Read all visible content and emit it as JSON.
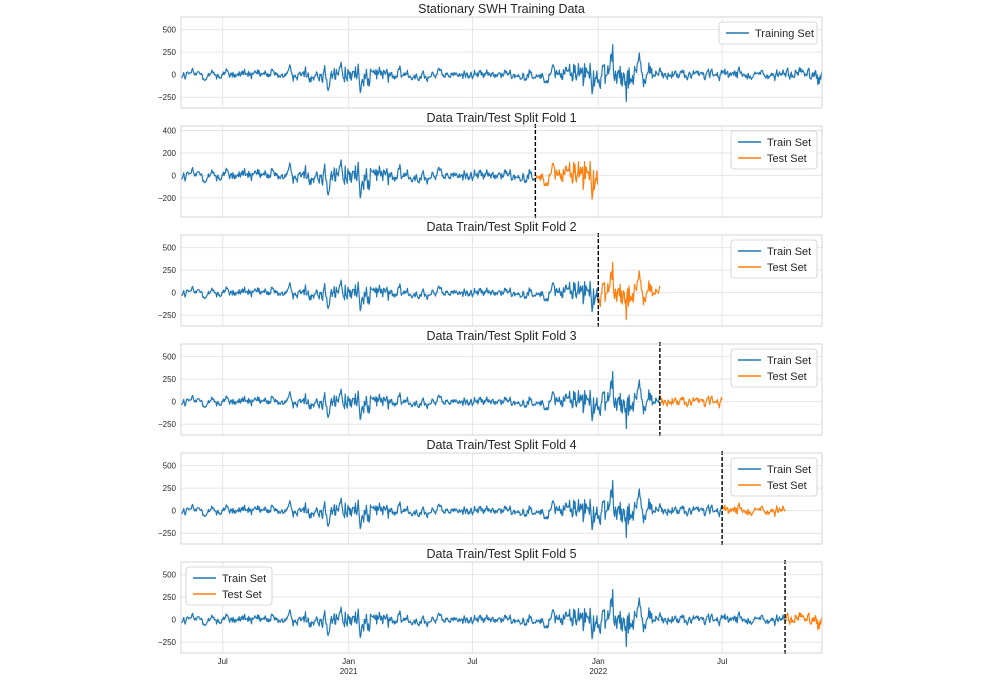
{
  "chart_data": {
    "type": "line",
    "x_axis": {
      "start": "2020-05-01",
      "end": "2022-11-24",
      "ticks": [
        {
          "date": "2020-07-01",
          "label": "Jul",
          "sublabel": ""
        },
        {
          "date": "2021-01-01",
          "label": "Jan",
          "sublabel": "2021"
        },
        {
          "date": "2021-07-01",
          "label": "Jul",
          "sublabel": ""
        },
        {
          "date": "2022-01-01",
          "label": "Jan",
          "sublabel": "2022"
        },
        {
          "date": "2022-07-01",
          "label": "Jul",
          "sublabel": ""
        }
      ]
    },
    "colors": {
      "train": "#1f77b4",
      "test": "#ff7f0e",
      "split": "#000000",
      "grid": "#e6e6e6"
    },
    "panels": [
      {
        "title": "Stationary SWH Training Data",
        "ylim": [
          -370,
          640
        ],
        "yticks": [
          {
            "v": -250,
            "label": "−250"
          },
          {
            "v": 0,
            "label": "0"
          },
          {
            "v": 250,
            "label": "250"
          },
          {
            "v": 500,
            "label": "500"
          }
        ],
        "series": [
          {
            "name": "Training Set",
            "role": "train",
            "start": "2020-05-01",
            "end": "2022-11-24"
          }
        ],
        "legend": "top-right"
      },
      {
        "title": "Data Train/Test Split Fold 1",
        "ylim": [
          -370,
          440
        ],
        "yticks": [
          {
            "v": -200,
            "label": "−200"
          },
          {
            "v": 0,
            "label": "0"
          },
          {
            "v": 200,
            "label": "200"
          },
          {
            "v": 400,
            "label": "400"
          }
        ],
        "split": "2021-10-01",
        "series": [
          {
            "name": "Train Set",
            "role": "train",
            "start": "2020-05-01",
            "end": "2021-10-01"
          },
          {
            "name": "Test Set",
            "role": "test",
            "start": "2021-10-01",
            "end": "2021-12-31"
          }
        ],
        "legend": "top-right"
      },
      {
        "title": "Data Train/Test Split Fold 2",
        "ylim": [
          -370,
          640
        ],
        "yticks": [
          {
            "v": -250,
            "label": "−250"
          },
          {
            "v": 0,
            "label": "0"
          },
          {
            "v": 250,
            "label": "250"
          },
          {
            "v": 500,
            "label": "500"
          }
        ],
        "split": "2022-01-01",
        "series": [
          {
            "name": "Train Set",
            "role": "train",
            "start": "2020-05-01",
            "end": "2022-01-01"
          },
          {
            "name": "Test Set",
            "role": "test",
            "start": "2022-01-01",
            "end": "2022-04-01"
          }
        ],
        "legend": "top-right"
      },
      {
        "title": "Data Train/Test Split Fold 3",
        "ylim": [
          -370,
          640
        ],
        "yticks": [
          {
            "v": -250,
            "label": "−250"
          },
          {
            "v": 0,
            "label": "0"
          },
          {
            "v": 250,
            "label": "250"
          },
          {
            "v": 500,
            "label": "500"
          }
        ],
        "split": "2022-04-01",
        "series": [
          {
            "name": "Train Set",
            "role": "train",
            "start": "2020-05-01",
            "end": "2022-04-01"
          },
          {
            "name": "Test Set",
            "role": "test",
            "start": "2022-04-01",
            "end": "2022-07-01"
          }
        ],
        "legend": "top-right"
      },
      {
        "title": "Data Train/Test Split Fold 4",
        "ylim": [
          -370,
          640
        ],
        "yticks": [
          {
            "v": -250,
            "label": "−250"
          },
          {
            "v": 0,
            "label": "0"
          },
          {
            "v": 250,
            "label": "250"
          },
          {
            "v": 500,
            "label": "500"
          }
        ],
        "split": "2022-07-01",
        "series": [
          {
            "name": "Train Set",
            "role": "train",
            "start": "2020-05-01",
            "end": "2022-07-01"
          },
          {
            "name": "Test Set",
            "role": "test",
            "start": "2022-07-01",
            "end": "2022-10-01"
          }
        ],
        "legend": "top-right"
      },
      {
        "title": "Data Train/Test Split Fold 5",
        "ylim": [
          -370,
          640
        ],
        "yticks": [
          {
            "v": -250,
            "label": "−250"
          },
          {
            "v": 0,
            "label": "0"
          },
          {
            "v": 250,
            "label": "250"
          },
          {
            "v": 500,
            "label": "500"
          }
        ],
        "split": "2022-10-01",
        "series": [
          {
            "name": "Train Set",
            "role": "train",
            "start": "2020-05-01",
            "end": "2022-10-01"
          },
          {
            "name": "Test Set",
            "role": "test",
            "start": "2022-10-01",
            "end": "2022-11-24"
          }
        ],
        "legend": "top-left"
      }
    ],
    "grid": true
  }
}
